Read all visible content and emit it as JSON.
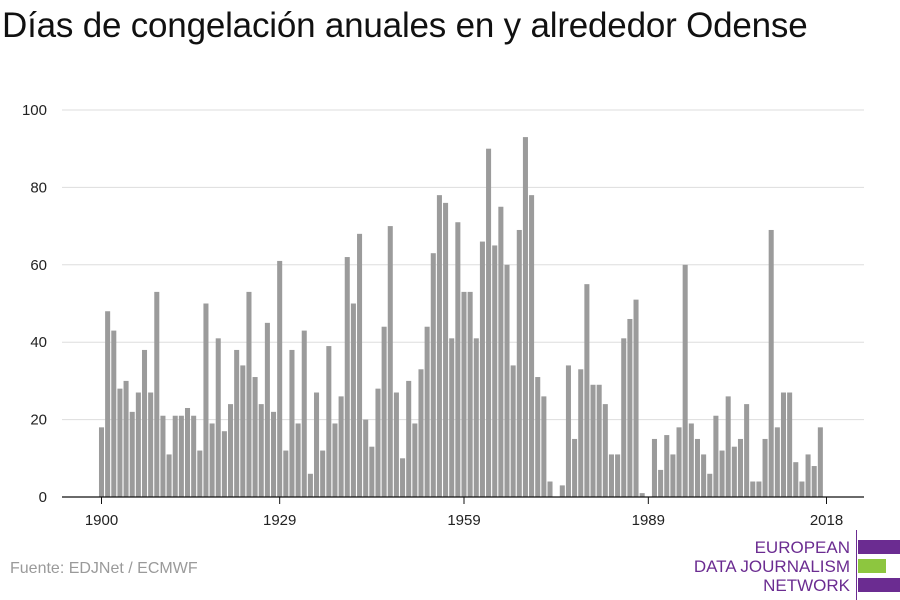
{
  "title": "Días de congelación anuales en y alrededor Odense",
  "source": "Fuente: EDJNet / ECMWF",
  "logo": {
    "lines": [
      "EUROPEAN",
      "DATA JOURNALISM",
      "NETWORK"
    ],
    "colors": {
      "purple": "#6b2c91",
      "green": "#8dc63f"
    }
  },
  "colors": {
    "bar": "#9b9b9b",
    "grid": "#dddddd",
    "axis": "#111111",
    "text": "#222222"
  },
  "chart_data": {
    "type": "bar",
    "title": "Días de congelación anuales en y alrededor Odense",
    "xlabel": "",
    "ylabel": "",
    "ylim": [
      0,
      100
    ],
    "yticks": [
      0,
      20,
      40,
      60,
      80,
      100
    ],
    "xticks": [
      1900,
      1929,
      1959,
      1989,
      2018
    ],
    "grid": true,
    "x": [
      1900,
      1901,
      1902,
      1903,
      1904,
      1905,
      1906,
      1907,
      1908,
      1909,
      1910,
      1911,
      1912,
      1913,
      1914,
      1915,
      1916,
      1917,
      1918,
      1919,
      1920,
      1921,
      1922,
      1923,
      1924,
      1925,
      1926,
      1927,
      1928,
      1929,
      1930,
      1931,
      1932,
      1933,
      1934,
      1935,
      1936,
      1937,
      1938,
      1939,
      1940,
      1941,
      1942,
      1943,
      1944,
      1945,
      1946,
      1947,
      1948,
      1949,
      1950,
      1951,
      1952,
      1953,
      1954,
      1955,
      1956,
      1957,
      1958,
      1959,
      1960,
      1961,
      1962,
      1963,
      1964,
      1965,
      1966,
      1967,
      1968,
      1969,
      1970,
      1971,
      1972,
      1973,
      1974,
      1975,
      1976,
      1977,
      1978,
      1979,
      1980,
      1981,
      1982,
      1983,
      1984,
      1985,
      1986,
      1987,
      1988,
      1989,
      1990,
      1991,
      1992,
      1993,
      1994,
      1995,
      1996,
      1997,
      1998,
      1999,
      2000,
      2001,
      2002,
      2003,
      2004,
      2005,
      2006,
      2007,
      2008,
      2009,
      2010,
      2011,
      2012,
      2013,
      2014,
      2015,
      2016,
      2017,
      2018
    ],
    "values": [
      18,
      48,
      43,
      28,
      30,
      22,
      27,
      38,
      27,
      53,
      21,
      11,
      21,
      21,
      23,
      21,
      12,
      50,
      19,
      41,
      17,
      24,
      38,
      34,
      53,
      31,
      24,
      45,
      22,
      61,
      12,
      38,
      19,
      43,
      6,
      27,
      12,
      39,
      19,
      26,
      62,
      50,
      68,
      20,
      13,
      28,
      44,
      70,
      27,
      10,
      30,
      19,
      33,
      44,
      63,
      78,
      76,
      41,
      71,
      53,
      53,
      41,
      66,
      90,
      65,
      75,
      60,
      34,
      69,
      93,
      78,
      31,
      26,
      4,
      0,
      3,
      34,
      15,
      33,
      55,
      29,
      29,
      24,
      11,
      11,
      41,
      46,
      51,
      1,
      0,
      15,
      7,
      16,
      11,
      18,
      60,
      19,
      15,
      11,
      6,
      21,
      12,
      26,
      13,
      15,
      24,
      4,
      4,
      15,
      69,
      18,
      27,
      27,
      9,
      4,
      11,
      8,
      18,
      0
    ]
  }
}
